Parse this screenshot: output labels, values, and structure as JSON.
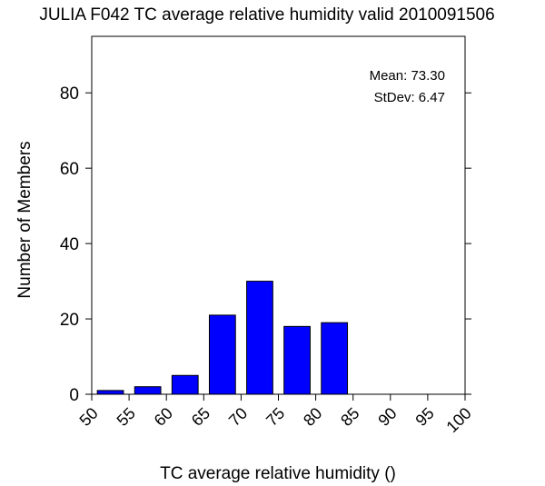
{
  "chart_data": {
    "type": "bar",
    "title": "JULIA F042 TC average relative humidity valid 2010091506",
    "xlabel": "TC average relative humidity ()",
    "ylabel": "Number of Members",
    "xlim": [
      50,
      100
    ],
    "ylim": [
      0,
      95
    ],
    "xticks": [
      "50",
      "55",
      "60",
      "65",
      "70",
      "75",
      "80",
      "85",
      "90",
      "95",
      "100"
    ],
    "yticks": [
      "0",
      "20",
      "40",
      "60",
      "80"
    ],
    "bins": [
      {
        "from": 50,
        "to": 55,
        "count": 1
      },
      {
        "from": 55,
        "to": 60,
        "count": 2
      },
      {
        "from": 60,
        "to": 65,
        "count": 5
      },
      {
        "from": 65,
        "to": 70,
        "count": 21
      },
      {
        "from": 70,
        "to": 75,
        "count": 30
      },
      {
        "from": 75,
        "to": 80,
        "count": 18
      },
      {
        "from": 80,
        "to": 85,
        "count": 19
      }
    ],
    "stats": {
      "mean_label": "Mean: 73.30",
      "stdev_label": "StDev: 6.47"
    },
    "colors": {
      "bar_fill": "#0000ff",
      "bar_stroke": "#000000"
    },
    "grid": false
  }
}
